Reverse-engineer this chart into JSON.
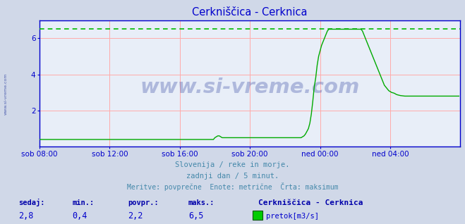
{
  "title": "Cerkniščica - Cerknica",
  "title_color": "#0000cc",
  "bg_color": "#d0d8e8",
  "plot_bg_color": "#e8eef8",
  "x_labels": [
    "sob 08:00",
    "sob 12:00",
    "sob 16:00",
    "sob 20:00",
    "ned 00:00",
    "ned 04:00"
  ],
  "x_ticks_pos": [
    0,
    48,
    96,
    144,
    192,
    240
  ],
  "total_points": 288,
  "y_min": 0,
  "y_max": 7.0,
  "y_ticks": [
    2,
    4,
    6
  ],
  "max_line_y": 6.5,
  "max_line_color": "#00bb00",
  "grid_color": "#ffaaaa",
  "line_color": "#00aa00",
  "axis_color": "#0000cc",
  "watermark_text": "www.si-vreme.com",
  "footer_line1": "Slovenija / reke in morje.",
  "footer_line2": "zadnji dan / 5 minut.",
  "footer_line3": "Meritve: povprečne  Enote: metrične  Črta: maksimum",
  "footer_color": "#4488aa",
  "legend_title": "Cerkniščica - Cerknica",
  "legend_label": "pretok[m3/s]",
  "legend_color": "#00cc00",
  "stat_labels": [
    "sedaj:",
    "min.:",
    "povpr.:",
    "maks.:"
  ],
  "stat_values": [
    "2,8",
    "0,4",
    "2,2",
    "6,5"
  ],
  "stat_label_color": "#0000aa",
  "stat_value_color": "#0000cc",
  "flow_data": [
    0.4,
    0.4,
    0.4,
    0.4,
    0.4,
    0.4,
    0.4,
    0.4,
    0.4,
    0.4,
    0.4,
    0.4,
    0.4,
    0.4,
    0.4,
    0.4,
    0.4,
    0.4,
    0.4,
    0.4,
    0.4,
    0.4,
    0.4,
    0.4,
    0.4,
    0.4,
    0.4,
    0.4,
    0.4,
    0.4,
    0.4,
    0.4,
    0.4,
    0.4,
    0.4,
    0.4,
    0.4,
    0.4,
    0.4,
    0.4,
    0.4,
    0.4,
    0.4,
    0.4,
    0.4,
    0.4,
    0.4,
    0.4,
    0.4,
    0.4,
    0.4,
    0.4,
    0.4,
    0.4,
    0.4,
    0.4,
    0.4,
    0.4,
    0.4,
    0.4,
    0.4,
    0.4,
    0.4,
    0.4,
    0.4,
    0.4,
    0.4,
    0.4,
    0.4,
    0.4,
    0.4,
    0.4,
    0.4,
    0.4,
    0.4,
    0.4,
    0.4,
    0.4,
    0.4,
    0.4,
    0.4,
    0.4,
    0.4,
    0.4,
    0.4,
    0.4,
    0.4,
    0.4,
    0.4,
    0.4,
    0.4,
    0.4,
    0.4,
    0.4,
    0.4,
    0.4,
    0.4,
    0.4,
    0.4,
    0.4,
    0.4,
    0.4,
    0.4,
    0.4,
    0.4,
    0.4,
    0.4,
    0.4,
    0.4,
    0.4,
    0.4,
    0.4,
    0.4,
    0.4,
    0.4,
    0.4,
    0.4,
    0.4,
    0.4,
    0.4,
    0.5,
    0.55,
    0.6,
    0.6,
    0.55,
    0.5,
    0.5,
    0.5,
    0.5,
    0.5,
    0.5,
    0.5,
    0.5,
    0.5,
    0.5,
    0.5,
    0.5,
    0.5,
    0.5,
    0.5,
    0.5,
    0.5,
    0.5,
    0.5,
    0.5,
    0.5,
    0.5,
    0.5,
    0.5,
    0.5,
    0.5,
    0.5,
    0.5,
    0.5,
    0.5,
    0.5,
    0.5,
    0.5,
    0.5,
    0.5,
    0.5,
    0.5,
    0.5,
    0.5,
    0.5,
    0.5,
    0.5,
    0.5,
    0.5,
    0.5,
    0.5,
    0.5,
    0.5,
    0.5,
    0.5,
    0.5,
    0.5,
    0.5,
    0.5,
    0.5,
    0.55,
    0.6,
    0.7,
    0.85,
    1.0,
    1.3,
    1.8,
    2.5,
    3.3,
    3.8,
    4.5,
    5.0,
    5.3,
    5.6,
    5.8,
    6.0,
    6.2,
    6.4,
    6.5,
    6.5,
    6.5,
    6.5,
    6.5,
    6.5,
    6.5,
    6.5,
    6.5,
    6.5,
    6.5,
    6.5,
    6.5,
    6.5,
    6.5,
    6.5,
    6.5,
    6.5,
    6.5,
    6.5,
    6.5,
    6.5,
    6.5,
    6.4,
    6.2,
    6.0,
    5.8,
    5.6,
    5.4,
    5.2,
    5.0,
    4.8,
    4.6,
    4.4,
    4.2,
    4.0,
    3.8,
    3.6,
    3.4,
    3.3,
    3.2,
    3.1,
    3.05,
    3.0,
    2.98,
    2.95,
    2.9,
    2.87,
    2.85,
    2.83,
    2.82,
    2.81,
    2.8,
    2.8,
    2.8,
    2.8,
    2.8,
    2.8,
    2.8,
    2.8,
    2.8,
    2.8,
    2.8,
    2.8,
    2.8,
    2.8,
    2.8,
    2.8,
    2.8,
    2.8,
    2.8,
    2.8,
    2.8,
    2.8,
    2.8,
    2.8,
    2.8,
    2.8,
    2.8,
    2.8,
    2.8,
    2.8,
    2.8,
    2.8,
    2.8,
    2.8,
    2.8,
    2.8,
    2.8,
    2.8
  ]
}
